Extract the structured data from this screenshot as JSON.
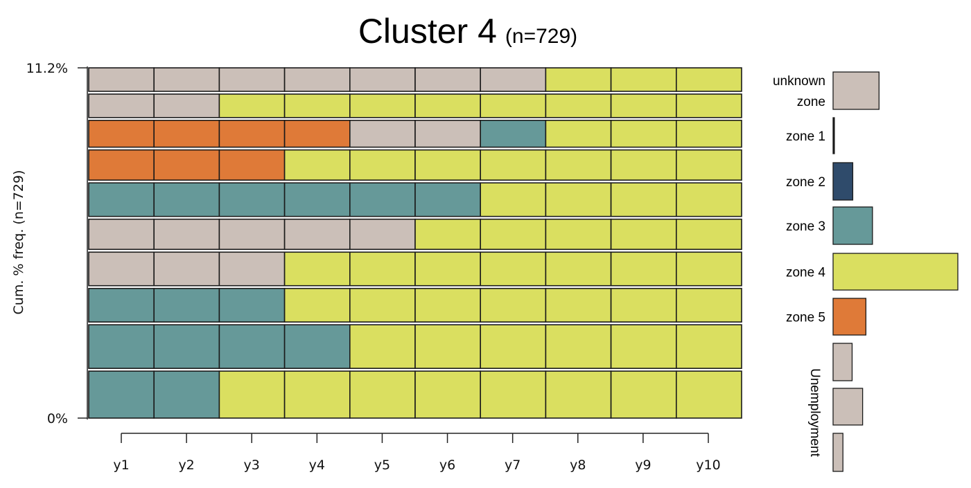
{
  "chart_data": {
    "type": "sequence-frequency",
    "title": "Cluster 4",
    "subtitle": "(n=729)",
    "ylabel": "Cum. % freq. (n=729)",
    "ytick_labels": [
      "0%",
      "11.2%"
    ],
    "ylim": [
      0,
      11.2
    ],
    "categories": [
      "y1",
      "y2",
      "y3",
      "y4",
      "y5",
      "y6",
      "y7",
      "y8",
      "y9",
      "y10"
    ],
    "states": [
      {
        "key": "unknown",
        "label": "unknown zone",
        "lines": [
          "unknown",
          "zone"
        ],
        "color": "#CBBFB8",
        "frequency": 0.07
      },
      {
        "key": "zone1",
        "label": "zone 1",
        "color": "#1A1A1A",
        "frequency": 0.002
      },
      {
        "key": "zone2",
        "label": "zone 2",
        "color": "#2F4B6B",
        "frequency": 0.03
      },
      {
        "key": "zone3",
        "label": "zone 3",
        "color": "#669999",
        "frequency": 0.06
      },
      {
        "key": "zone4",
        "label": "zone 4",
        "color": "#DADF60",
        "frequency": 0.19
      },
      {
        "key": "zone5",
        "label": "zone 5",
        "color": "#DF7A38",
        "frequency": 0.05
      },
      {
        "key": "unemp1",
        "label": "",
        "color": "#CBBFB8",
        "frequency": 0.029
      },
      {
        "key": "unemp2",
        "label": "",
        "color": "#CBBFB8",
        "frequency": 0.045
      },
      {
        "key": "unemp3",
        "label": "",
        "color": "#CBBFB8",
        "frequency": 0.015
      }
    ],
    "unemployment_label": "Unemployment",
    "sequences": [
      {
        "freq": 1.4,
        "states": [
          "zone3",
          "zone3",
          "zone4",
          "zone4",
          "zone4",
          "zone4",
          "zone4",
          "zone4",
          "zone4",
          "zone4"
        ]
      },
      {
        "freq": 1.3,
        "states": [
          "zone3",
          "zone3",
          "zone3",
          "zone3",
          "zone4",
          "zone4",
          "zone4",
          "zone4",
          "zone4",
          "zone4"
        ]
      },
      {
        "freq": 1.0,
        "states": [
          "zone3",
          "zone3",
          "zone3",
          "zone4",
          "zone4",
          "zone4",
          "zone4",
          "zone4",
          "zone4",
          "zone4"
        ]
      },
      {
        "freq": 1.0,
        "states": [
          "unknown",
          "unknown",
          "unknown",
          "zone4",
          "zone4",
          "zone4",
          "zone4",
          "zone4",
          "zone4",
          "zone4"
        ]
      },
      {
        "freq": 0.9,
        "states": [
          "unknown",
          "unknown",
          "unknown",
          "unknown",
          "unknown",
          "zone4",
          "zone4",
          "zone4",
          "zone4",
          "zone4"
        ]
      },
      {
        "freq": 1.0,
        "states": [
          "zone3",
          "zone3",
          "zone3",
          "zone3",
          "zone3",
          "zone3",
          "zone4",
          "zone4",
          "zone4",
          "zone4"
        ]
      },
      {
        "freq": 0.9,
        "states": [
          "zone5",
          "zone5",
          "zone5",
          "zone4",
          "zone4",
          "zone4",
          "zone4",
          "zone4",
          "zone4",
          "zone4"
        ]
      },
      {
        "freq": 0.8,
        "states": [
          "zone5",
          "zone5",
          "zone5",
          "zone5",
          "unknown",
          "unknown",
          "zone3",
          "zone4",
          "zone4",
          "zone4"
        ]
      },
      {
        "freq": 0.7,
        "states": [
          "unknown",
          "unknown",
          "zone4",
          "zone4",
          "zone4",
          "zone4",
          "zone4",
          "zone4",
          "zone4",
          "zone4"
        ]
      },
      {
        "freq": 0.7,
        "states": [
          "unknown",
          "unknown",
          "unknown",
          "unknown",
          "unknown",
          "unknown",
          "unknown",
          "zone4",
          "zone4",
          "zone4"
        ]
      }
    ]
  }
}
